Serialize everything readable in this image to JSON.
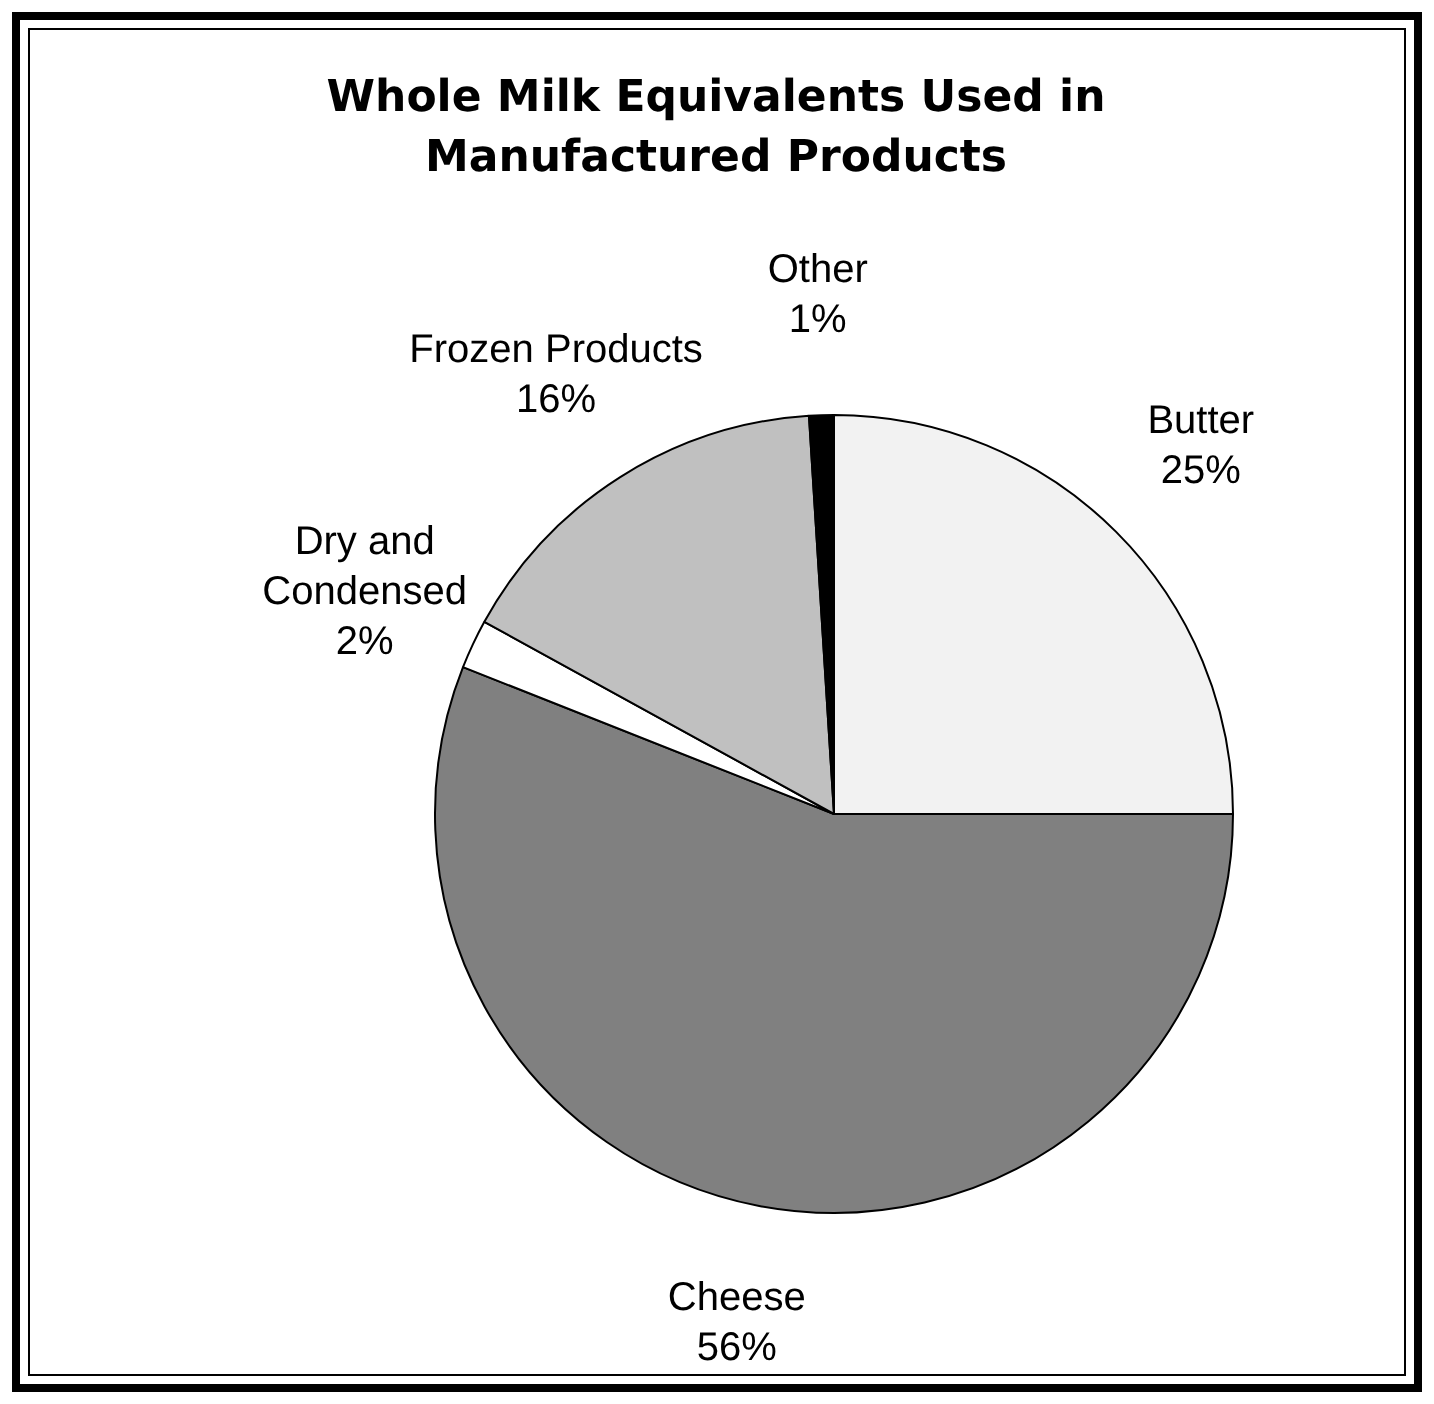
{
  "chart_data": {
    "type": "pie",
    "title": "Whole Milk Equivalents Used in Manufactured Products",
    "categories": [
      "Butter",
      "Cheese",
      "Dry and Condensed",
      "Frozen Products",
      "Other"
    ],
    "values": [
      25,
      56,
      2,
      16,
      1
    ],
    "value_labels": [
      "25%",
      "56%",
      "2%",
      "16%",
      "1%"
    ],
    "colors": [
      "#f2f2f2",
      "#808080",
      "#ffffff",
      "#c0c0c0",
      "#000000"
    ],
    "legend": false
  }
}
